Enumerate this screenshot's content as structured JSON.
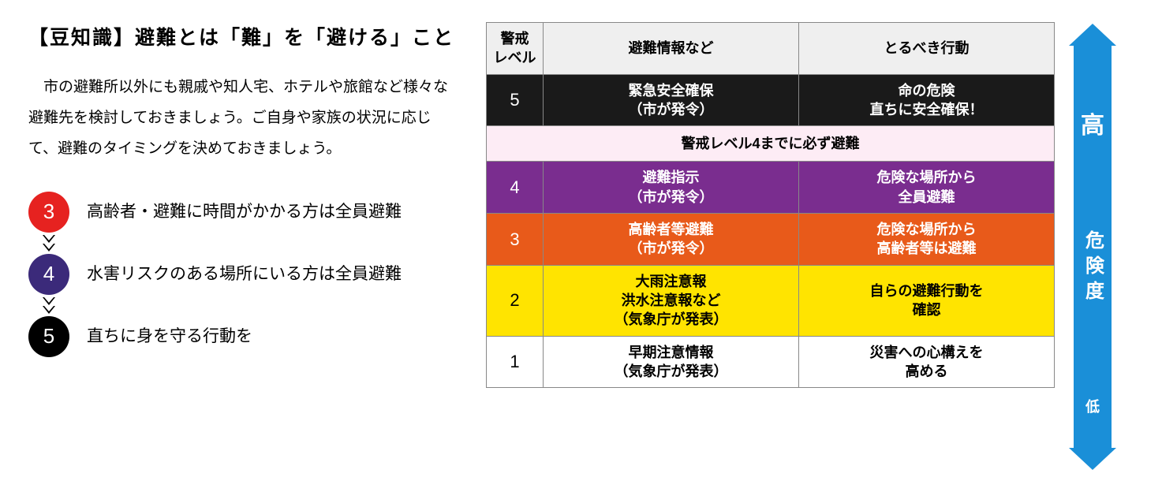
{
  "title": "【豆知識】避難とは「難」を「避ける」こと",
  "intro": "市の避難所以外にも親戚や知人宅、ホテルや旅館など様々な避難先を検討しておきましょう。ご自身や家族の状況に応じて、避難のタイミングを決めておきましょう。",
  "steps": [
    {
      "num": "3",
      "color": "#e62220",
      "text": "高齢者・避難に時間がかかる方は全員避難"
    },
    {
      "num": "4",
      "color": "#3b2a7a",
      "text": "水害リスクのある場所にいる方は全員避難"
    },
    {
      "num": "5",
      "color": "#000000",
      "text": "直ちに身を守る行動を"
    }
  ],
  "table": {
    "headers": {
      "level": "警戒\nレベル",
      "info": "避難情報など",
      "action": "とるべき行動"
    },
    "rows": [
      {
        "cls": "row5",
        "level": "5",
        "info": "緊急安全確保\n（市が発令）",
        "action": "命の危険\n直ちに安全確保！",
        "bg": "#1a1a1a",
        "fg": "#ffffff"
      },
      {
        "cls": "banner",
        "span": true,
        "text": "警戒レベル4までに必ず避難",
        "bg": "#fdecf5",
        "fg": "#000000"
      },
      {
        "cls": "row4",
        "level": "4",
        "info": "避難指示\n（市が発令）",
        "action": "危険な場所から\n全員避難",
        "bg": "#7a2d8f",
        "fg": "#ffffff"
      },
      {
        "cls": "row3",
        "level": "3",
        "info": "高齢者等避難\n（市が発令）",
        "action": "危険な場所から\n高齢者等は避難",
        "bg": "#e85a1a",
        "fg": "#ffffff"
      },
      {
        "cls": "row2",
        "level": "2",
        "info": "大雨注意報\n洪水注意報など\n（気象庁が発表）",
        "action": "自らの避難行動を\n確認",
        "bg": "#ffe400",
        "fg": "#000000"
      },
      {
        "cls": "row1",
        "level": "1",
        "info": "早期注意情報\n（気象庁が発表）",
        "action": "災害への心構えを\n高める",
        "bg": "#ffffff",
        "fg": "#000000"
      }
    ]
  },
  "gauge": {
    "color": "#1a8fd8",
    "top": "高",
    "mid": "危険度",
    "bottom": "低"
  }
}
